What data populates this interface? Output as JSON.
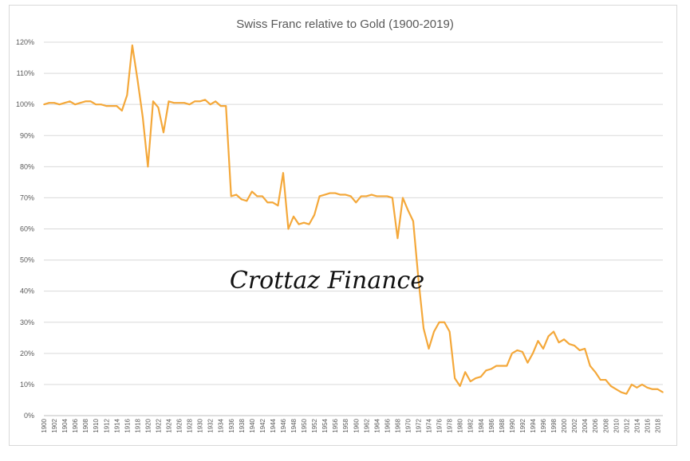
{
  "chart_data": {
    "type": "line",
    "title": "Swiss Franc relative to Gold (1900-2019)",
    "watermark": "Crottaz Finance",
    "xlabel": "",
    "ylabel": "",
    "ylim": [
      0,
      120
    ],
    "y_tick_labels": [
      "0%",
      "10%",
      "20%",
      "30%",
      "40%",
      "50%",
      "60%",
      "70%",
      "80%",
      "90%",
      "100%",
      "110%",
      "120%"
    ],
    "y_ticks": [
      0,
      10,
      20,
      30,
      40,
      50,
      60,
      70,
      80,
      90,
      100,
      110,
      120
    ],
    "grid": "horizontal",
    "legend": "none",
    "line_color": "#f4a83a",
    "x_tick_labels": [
      "1900",
      "1902",
      "1904",
      "1906",
      "1908",
      "1910",
      "1912",
      "1914",
      "1916",
      "1918",
      "1920",
      "1922",
      "1924",
      "1926",
      "1928",
      "1930",
      "1932",
      "1934",
      "1936",
      "1938",
      "1940",
      "1942",
      "1944",
      "1946",
      "1948",
      "1950",
      "1952",
      "1954",
      "1956",
      "1958",
      "1960",
      "1962",
      "1964",
      "1966",
      "1968",
      "1970",
      "1972",
      "1974",
      "1976",
      "1978",
      "1980",
      "1982",
      "1984",
      "1986",
      "1988",
      "1990",
      "1992",
      "1994",
      "1996",
      "1998",
      "2000",
      "2002",
      "2004",
      "2006",
      "2008",
      "2010",
      "2012",
      "2014",
      "2016",
      "2018"
    ],
    "x": [
      1900,
      1901,
      1902,
      1903,
      1904,
      1905,
      1906,
      1907,
      1908,
      1909,
      1910,
      1911,
      1912,
      1913,
      1914,
      1915,
      1916,
      1917,
      1918,
      1919,
      1920,
      1921,
      1922,
      1923,
      1924,
      1925,
      1926,
      1927,
      1928,
      1929,
      1930,
      1931,
      1932,
      1933,
      1934,
      1935,
      1936,
      1937,
      1938,
      1939,
      1940,
      1941,
      1942,
      1943,
      1944,
      1945,
      1946,
      1947,
      1948,
      1949,
      1950,
      1951,
      1952,
      1953,
      1954,
      1955,
      1956,
      1957,
      1958,
      1959,
      1960,
      1961,
      1962,
      1963,
      1964,
      1965,
      1966,
      1967,
      1968,
      1969,
      1970,
      1971,
      1972,
      1973,
      1974,
      1975,
      1976,
      1977,
      1978,
      1979,
      1980,
      1981,
      1982,
      1983,
      1984,
      1985,
      1986,
      1987,
      1988,
      1989,
      1990,
      1991,
      1992,
      1993,
      1994,
      1995,
      1996,
      1997,
      1998,
      1999,
      2000,
      2001,
      2002,
      2003,
      2004,
      2005,
      2006,
      2007,
      2008,
      2009,
      2010,
      2011,
      2012,
      2013,
      2014,
      2015,
      2016,
      2017,
      2018,
      2019
    ],
    "values": [
      100,
      100.5,
      100.5,
      100,
      100.5,
      101,
      100,
      100.5,
      101,
      101,
      100,
      100,
      99.5,
      99.5,
      99.5,
      98,
      103,
      119,
      108,
      96,
      80,
      101,
      99,
      91,
      101,
      100.5,
      100.5,
      100.5,
      100,
      101,
      101,
      101.5,
      100,
      101,
      99.5,
      99.5,
      70.5,
      71,
      69.5,
      69,
      72,
      70.5,
      70.5,
      68.5,
      68.5,
      67.5,
      78,
      60,
      64,
      61.5,
      62,
      61.5,
      64.5,
      70.5,
      71,
      71.5,
      71.5,
      71,
      71,
      70.5,
      68.5,
      70.5,
      70.5,
      71,
      70.5,
      70.5,
      70.5,
      70,
      57,
      70,
      66,
      62.5,
      44,
      28,
      21.5,
      27,
      30,
      30,
      27,
      12,
      9.5,
      14,
      11,
      12,
      12.5,
      14.5,
      15,
      16,
      16,
      16,
      20,
      21,
      20.5,
      17,
      20,
      24,
      21.5,
      25.5,
      27,
      23.5,
      24.5,
      23,
      22.5,
      21,
      21.5,
      16,
      14,
      11.5,
      11.5,
      9.5,
      8.5,
      7.5,
      7,
      10,
      9,
      10,
      9,
      8.5,
      8.5,
      7.5
    ]
  }
}
